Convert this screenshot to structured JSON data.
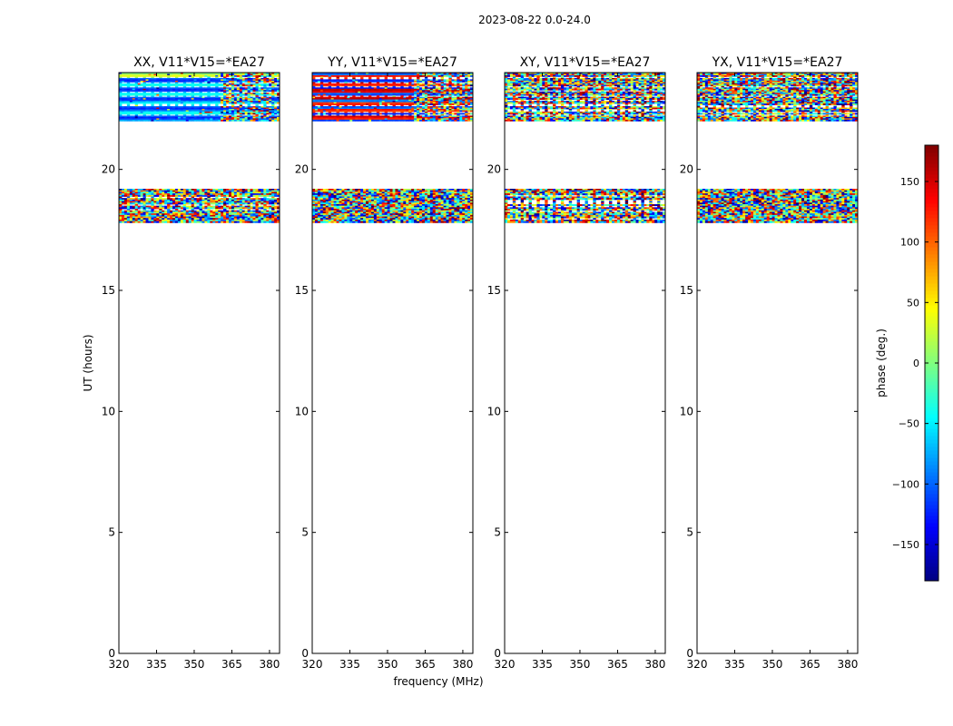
{
  "figure": {
    "suptitle": "2023-08-22 0.0-24.0"
  },
  "chart_data": {
    "type": "heatmap",
    "shared": {
      "xlabel": "frequency (MHz)",
      "ylabel": "UT (hours)",
      "xlim": [
        320,
        384
      ],
      "ylim": [
        0,
        24
      ],
      "xticks": [
        320,
        335,
        350,
        365,
        380
      ],
      "yticks": [
        0,
        5,
        10,
        15,
        20
      ],
      "data_time_ranges": [
        [
          17.8,
          19.2
        ],
        [
          22.0,
          24.0
        ]
      ]
    },
    "panels": [
      {
        "title": "XX, V11*V15=*EA27",
        "pattern": "xx"
      },
      {
        "title": "YY, V11*V15=*EA27",
        "pattern": "yy"
      },
      {
        "title": "XY, V11*V15=*EA27",
        "pattern": "noise"
      },
      {
        "title": "YX, V11*V15=*EA27",
        "pattern": "noise"
      }
    ],
    "colorbar": {
      "label": "phase (deg.)",
      "colormap": "jet",
      "range": [
        -180,
        180
      ],
      "ticks": [
        -150,
        -100,
        -50,
        0,
        50,
        100,
        150
      ],
      "tick_labels": [
        "−150",
        "−100",
        "−50",
        "0",
        "50",
        "100",
        "150"
      ]
    }
  }
}
